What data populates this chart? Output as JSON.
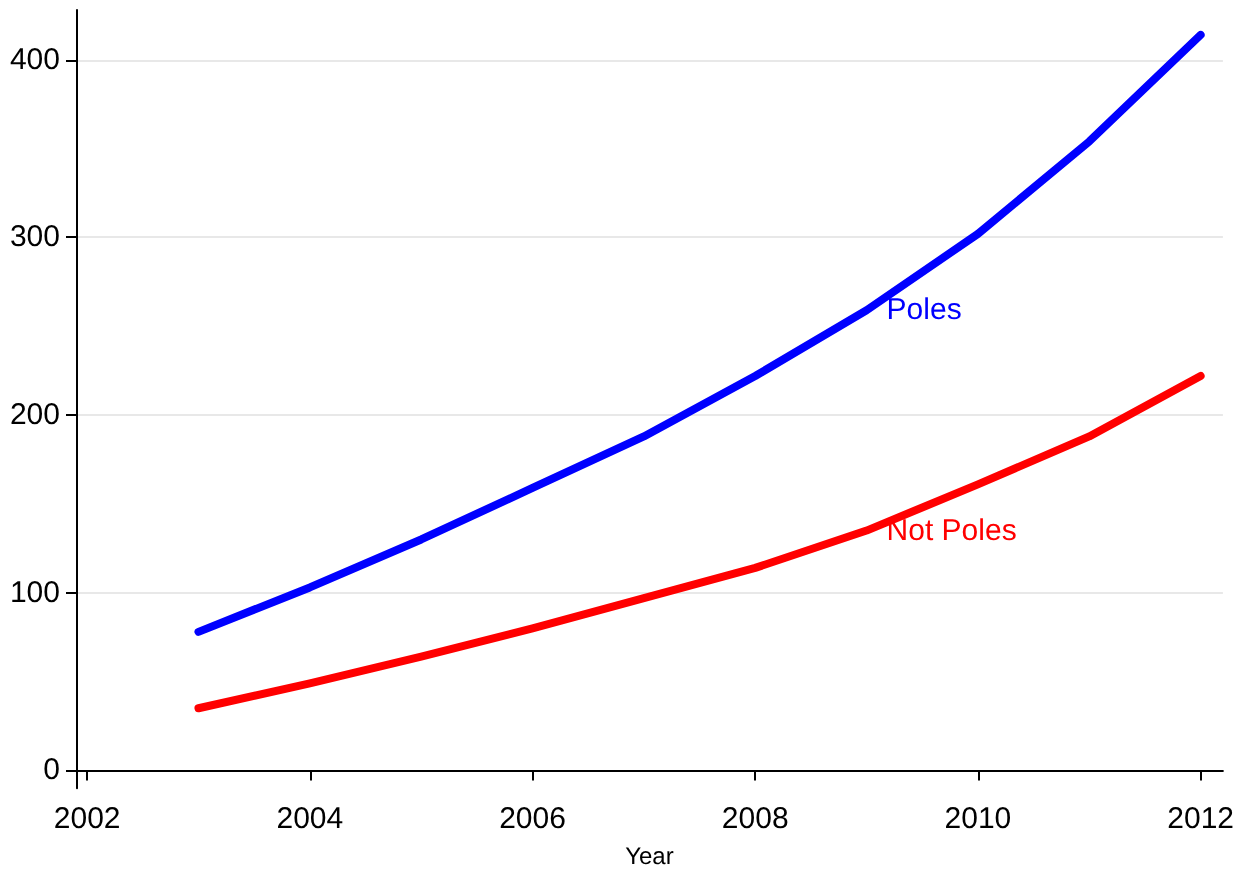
{
  "chart_data": {
    "type": "line",
    "xlabel": "Year",
    "x": [
      2003,
      2004,
      2005,
      2006,
      2007,
      2008,
      2009,
      2010,
      2011,
      2012
    ],
    "series": [
      {
        "name": "Poles",
        "color": "#0000ff",
        "values": [
          78,
          103,
          130,
          159,
          188,
          222,
          259,
          302,
          354,
          414
        ]
      },
      {
        "name": "Not Poles",
        "color": "#ff0000",
        "values": [
          35,
          49,
          64,
          80,
          97,
          114,
          135,
          161,
          188,
          222
        ]
      }
    ],
    "xlim": [
      2001.9,
      2012.2
    ],
    "xticks": [
      2002,
      2004,
      2006,
      2008,
      2010,
      2012
    ],
    "ylim": [
      -10,
      428
    ],
    "yticks": [
      0,
      100,
      200,
      300,
      400
    ],
    "grid": "y",
    "marker": "none",
    "line_style": "solid",
    "legend": false
  }
}
